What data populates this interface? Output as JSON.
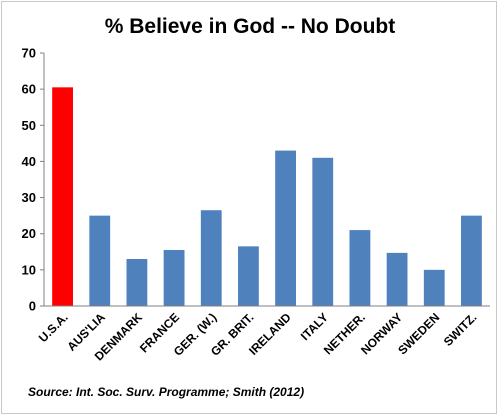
{
  "chart_data": {
    "type": "bar",
    "title": "% Believe in God -- No Doubt",
    "categories": [
      "U.S.A.",
      "AUS'LIA",
      "DENMARK",
      "FRANCE",
      "GER. (W.)",
      "GR. BRIT.",
      "IRELAND",
      "ITALY",
      "NETHER.",
      "NORWAY",
      "SWEDEN",
      "SWITZ."
    ],
    "values": [
      60.5,
      25,
      13,
      15.5,
      26.5,
      16.5,
      43,
      41,
      21,
      14.7,
      10,
      25
    ],
    "bar_colors": [
      "#ff0000",
      "#4f81bd",
      "#4f81bd",
      "#4f81bd",
      "#4f81bd",
      "#4f81bd",
      "#4f81bd",
      "#4f81bd",
      "#4f81bd",
      "#4f81bd",
      "#4f81bd",
      "#4f81bd"
    ],
    "xlabel": "",
    "ylabel": "",
    "ylim": [
      0,
      70
    ],
    "yticks": [
      "0",
      "10",
      "20",
      "30",
      "40",
      "50",
      "60",
      "70"
    ],
    "grid": false,
    "legend": "none",
    "source": "Source: Int. Soc. Surv. Programme; Smith (2012)"
  }
}
